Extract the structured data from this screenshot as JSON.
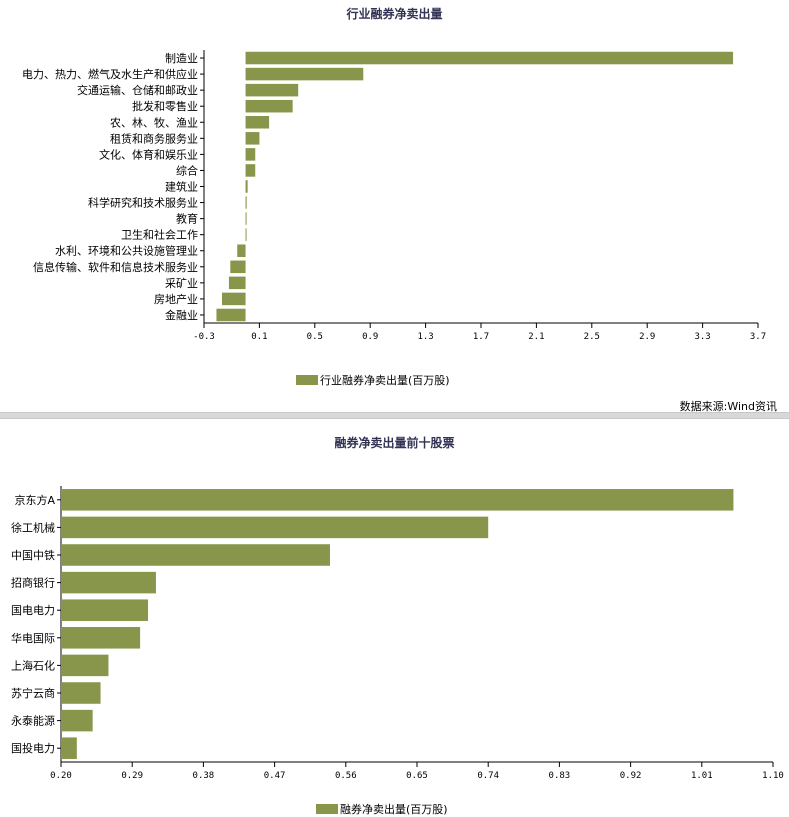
{
  "colors": {
    "bar": "#87964a",
    "axis": "#000000"
  },
  "source_text": "数据来源:Wind资讯",
  "chart_data": [
    {
      "type": "bar",
      "orientation": "horizontal",
      "title": "行业融券净卖出量",
      "legend": "行业融券净卖出量(百万股)",
      "xlim": [
        -0.3,
        3.7
      ],
      "xticks": [
        "-0.3",
        "0.1",
        "0.5",
        "0.9",
        "1.3",
        "1.7",
        "2.1",
        "2.5",
        "2.9",
        "3.3",
        "3.7"
      ],
      "categories": [
        "制造业",
        "电力、热力、燃气及水生产和供应业",
        "交通运输、仓储和邮政业",
        "批发和零售业",
        "农、林、牧、渔业",
        "租赁和商务服务业",
        "文化、体育和娱乐业",
        "综合",
        "建筑业",
        "科学研究和技术服务业",
        "教育",
        "卫生和社会工作",
        "水利、环境和公共设施管理业",
        "信息传输、软件和信息技术服务业",
        "采矿业",
        "房地产业",
        "金融业"
      ],
      "values": [
        3.52,
        0.85,
        0.38,
        0.34,
        0.17,
        0.1,
        0.07,
        0.07,
        0.015,
        0.008,
        0.005,
        0.003,
        -0.06,
        -0.11,
        -0.12,
        -0.17,
        -0.21
      ]
    },
    {
      "type": "bar",
      "orientation": "horizontal",
      "title": "融券净卖出量前十股票",
      "legend": "融券净卖出量(百万股)",
      "xlim": [
        0.2,
        1.1
      ],
      "xticks": [
        "0.20",
        "0.29",
        "0.38",
        "0.47",
        "0.56",
        "0.65",
        "0.74",
        "0.83",
        "0.92",
        "1.01",
        "1.10"
      ],
      "categories": [
        "京东方A",
        "徐工机械",
        "中国中铁",
        "招商银行",
        "国电电力",
        "华电国际",
        "上海石化",
        "苏宁云商",
        "永泰能源",
        "国投电力"
      ],
      "values": [
        1.05,
        0.74,
        0.54,
        0.32,
        0.31,
        0.3,
        0.26,
        0.25,
        0.24,
        0.22
      ]
    }
  ]
}
